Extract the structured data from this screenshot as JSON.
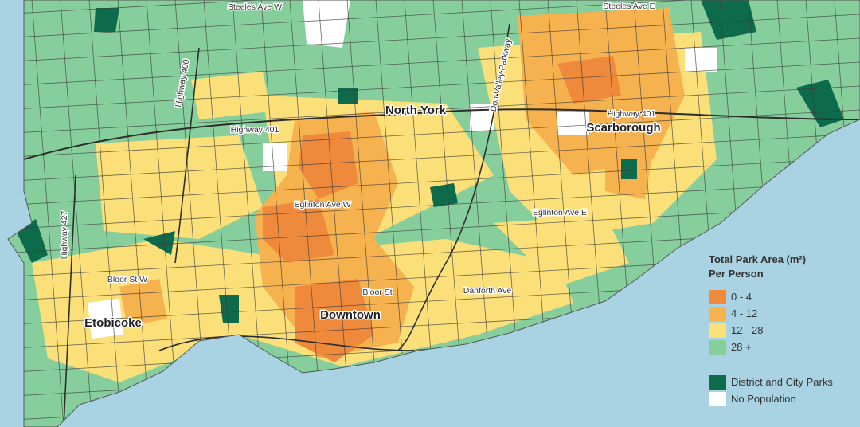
{
  "map": {
    "roads": {
      "steeles_w": "Steeles Ave W",
      "steeles_e": "Steeles Ave E",
      "highway_400": "Highway 400",
      "highway_401_west": "Highway 401",
      "highway_401_east": "Highway 401",
      "don_valley": "Don Valley Parkway",
      "highway_427": "Highway 427",
      "eglinton_w": "Eglinton Ave W",
      "eglinton_e": "Eglinton Ave E",
      "bloor_w": "Bloor St W",
      "bloor": "Bloor St",
      "danforth": "Danforth Ave"
    },
    "districts": {
      "north_york": "North York",
      "scarborough": "Scarborough",
      "downtown": "Downtown",
      "etobicoke": "Etobicoke"
    },
    "legend": {
      "title": "Total Park Area (m²)",
      "subtitle": "Per Person",
      "ranges": [
        {
          "label": "0 - 4",
          "color": "#ef8a3c"
        },
        {
          "label": "4 - 12",
          "color": "#f6b24e"
        },
        {
          "label": "12 - 28",
          "color": "#fbe07a"
        },
        {
          "label": "28 +",
          "color": "#86cf9c"
        }
      ],
      "other": [
        {
          "label": "District and City Parks",
          "color": "#0d6a4b"
        },
        {
          "label": "No Population",
          "color": "#ffffff"
        }
      ]
    }
  }
}
